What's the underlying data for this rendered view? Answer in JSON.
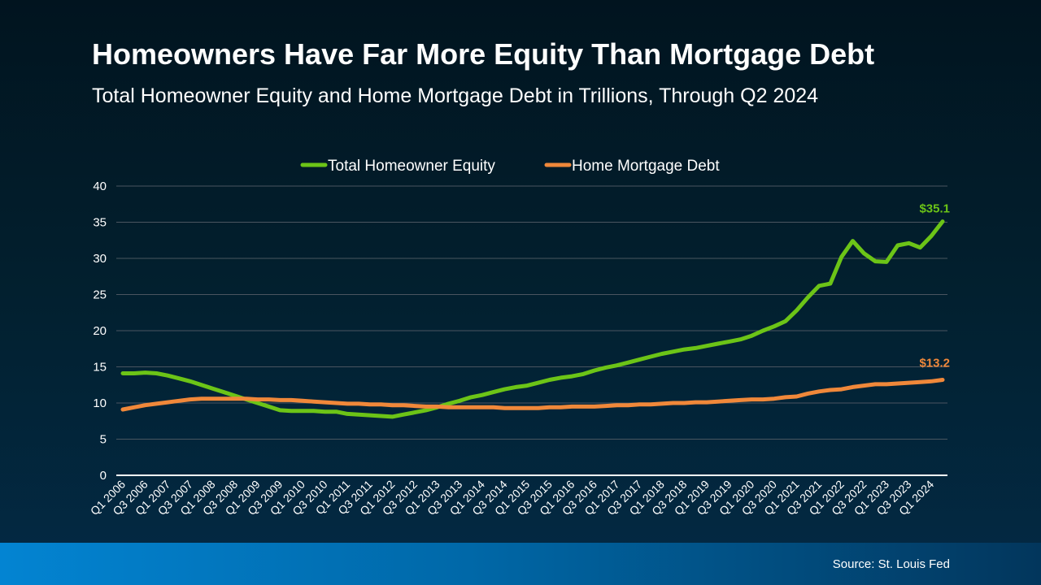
{
  "header": {
    "title": "Homeowners Have Far More Equity Than Mortgage Debt",
    "subtitle": "Total Homeowner Equity and Home Mortgage Debt in Trillions, Through Q2 2024"
  },
  "footer": {
    "source": "Source: St. Louis Fed"
  },
  "chart_data": {
    "type": "line",
    "ylim": [
      0,
      40
    ],
    "yticks": [
      "0",
      "5",
      "10",
      "15",
      "20",
      "25",
      "30",
      "35",
      "40"
    ],
    "grid": true,
    "legend_position": "top",
    "x": [
      "Q1 2006",
      "Q2 2006",
      "Q3 2006",
      "Q4 2006",
      "Q1 2007",
      "Q2 2007",
      "Q3 2007",
      "Q4 2007",
      "Q1 2008",
      "Q2 2008",
      "Q3 2008",
      "Q4 2008",
      "Q1 2009",
      "Q2 2009",
      "Q3 2009",
      "Q4 2009",
      "Q1 2010",
      "Q2 2010",
      "Q3 2010",
      "Q4 2010",
      "Q1 2011",
      "Q2 2011",
      "Q3 2011",
      "Q4 2011",
      "Q1 2012",
      "Q2 2012",
      "Q3 2012",
      "Q4 2012",
      "Q1 2013",
      "Q2 2013",
      "Q3 2013",
      "Q4 2013",
      "Q1 2014",
      "Q2 2014",
      "Q3 2014",
      "Q4 2014",
      "Q1 2015",
      "Q2 2015",
      "Q3 2015",
      "Q4 2015",
      "Q1 2016",
      "Q2 2016",
      "Q3 2016",
      "Q4 2016",
      "Q1 2017",
      "Q2 2017",
      "Q3 2017",
      "Q4 2017",
      "Q1 2018",
      "Q2 2018",
      "Q3 2018",
      "Q4 2018",
      "Q1 2019",
      "Q2 2019",
      "Q3 2019",
      "Q4 2019",
      "Q1 2020",
      "Q2 2020",
      "Q3 2020",
      "Q4 2020",
      "Q1 2021",
      "Q2 2021",
      "Q3 2021",
      "Q4 2021",
      "Q1 2022",
      "Q2 2022",
      "Q3 2022",
      "Q4 2022",
      "Q1 2023",
      "Q2 2023",
      "Q3 2023",
      "Q4 2023",
      "Q1 2024",
      "Q2 2024"
    ],
    "xtick_labels": [
      "Q1 2006",
      "Q3 2006",
      "Q1 2007",
      "Q3 2007",
      "Q1 2008",
      "Q3 2008",
      "Q1 2009",
      "Q3 2009",
      "Q1 2010",
      "Q3 2010",
      "Q1 2011",
      "Q3 2011",
      "Q1 2012",
      "Q3 2012",
      "Q1 2013",
      "Q3 2013",
      "Q1 2014",
      "Q3 2014",
      "Q1 2015",
      "Q3 2015",
      "Q1 2016",
      "Q3 2016",
      "Q1 2017",
      "Q3 2017",
      "Q1 2018",
      "Q3 2018",
      "Q1 2019",
      "Q3 2019",
      "Q1 2020",
      "Q3 2020",
      "Q1 2021",
      "Q3 2021",
      "Q1 2022",
      "Q3 2022",
      "Q1 2023",
      "Q3 2023",
      "Q1 2024"
    ],
    "series": [
      {
        "name": "Total Homeowner Equity",
        "color": "#6cc417",
        "end_label": "$35.1",
        "values": [
          14.1,
          14.1,
          14.2,
          14.1,
          13.8,
          13.4,
          13.0,
          12.5,
          12.0,
          11.5,
          11.0,
          10.5,
          10.0,
          9.5,
          9.0,
          8.9,
          8.9,
          8.9,
          8.8,
          8.8,
          8.5,
          8.4,
          8.3,
          8.2,
          8.1,
          8.4,
          8.7,
          9.0,
          9.4,
          9.9,
          10.3,
          10.8,
          11.1,
          11.5,
          11.9,
          12.2,
          12.4,
          12.8,
          13.2,
          13.5,
          13.7,
          14.0,
          14.5,
          14.9,
          15.2,
          15.6,
          16.0,
          16.4,
          16.8,
          17.1,
          17.4,
          17.6,
          17.9,
          18.2,
          18.5,
          18.8,
          19.3,
          20.0,
          20.6,
          21.3,
          22.8,
          24.6,
          26.2,
          26.5,
          30.2,
          32.4,
          30.7,
          29.6,
          29.5,
          31.8,
          32.1,
          31.5,
          33.1,
          35.1
        ]
      },
      {
        "name": "Home Mortgage Debt",
        "color": "#f0883a",
        "end_label": "$13.2",
        "values": [
          9.1,
          9.4,
          9.7,
          9.9,
          10.1,
          10.3,
          10.5,
          10.6,
          10.6,
          10.6,
          10.6,
          10.6,
          10.5,
          10.5,
          10.4,
          10.4,
          10.3,
          10.2,
          10.1,
          10.0,
          9.9,
          9.9,
          9.8,
          9.8,
          9.7,
          9.7,
          9.6,
          9.5,
          9.5,
          9.4,
          9.4,
          9.4,
          9.4,
          9.4,
          9.3,
          9.3,
          9.3,
          9.3,
          9.4,
          9.4,
          9.5,
          9.5,
          9.5,
          9.6,
          9.7,
          9.7,
          9.8,
          9.8,
          9.9,
          10.0,
          10.0,
          10.1,
          10.1,
          10.2,
          10.3,
          10.4,
          10.5,
          10.5,
          10.6,
          10.8,
          10.9,
          11.3,
          11.6,
          11.8,
          11.9,
          12.2,
          12.4,
          12.6,
          12.6,
          12.7,
          12.8,
          12.9,
          13.0,
          13.2
        ]
      }
    ]
  }
}
